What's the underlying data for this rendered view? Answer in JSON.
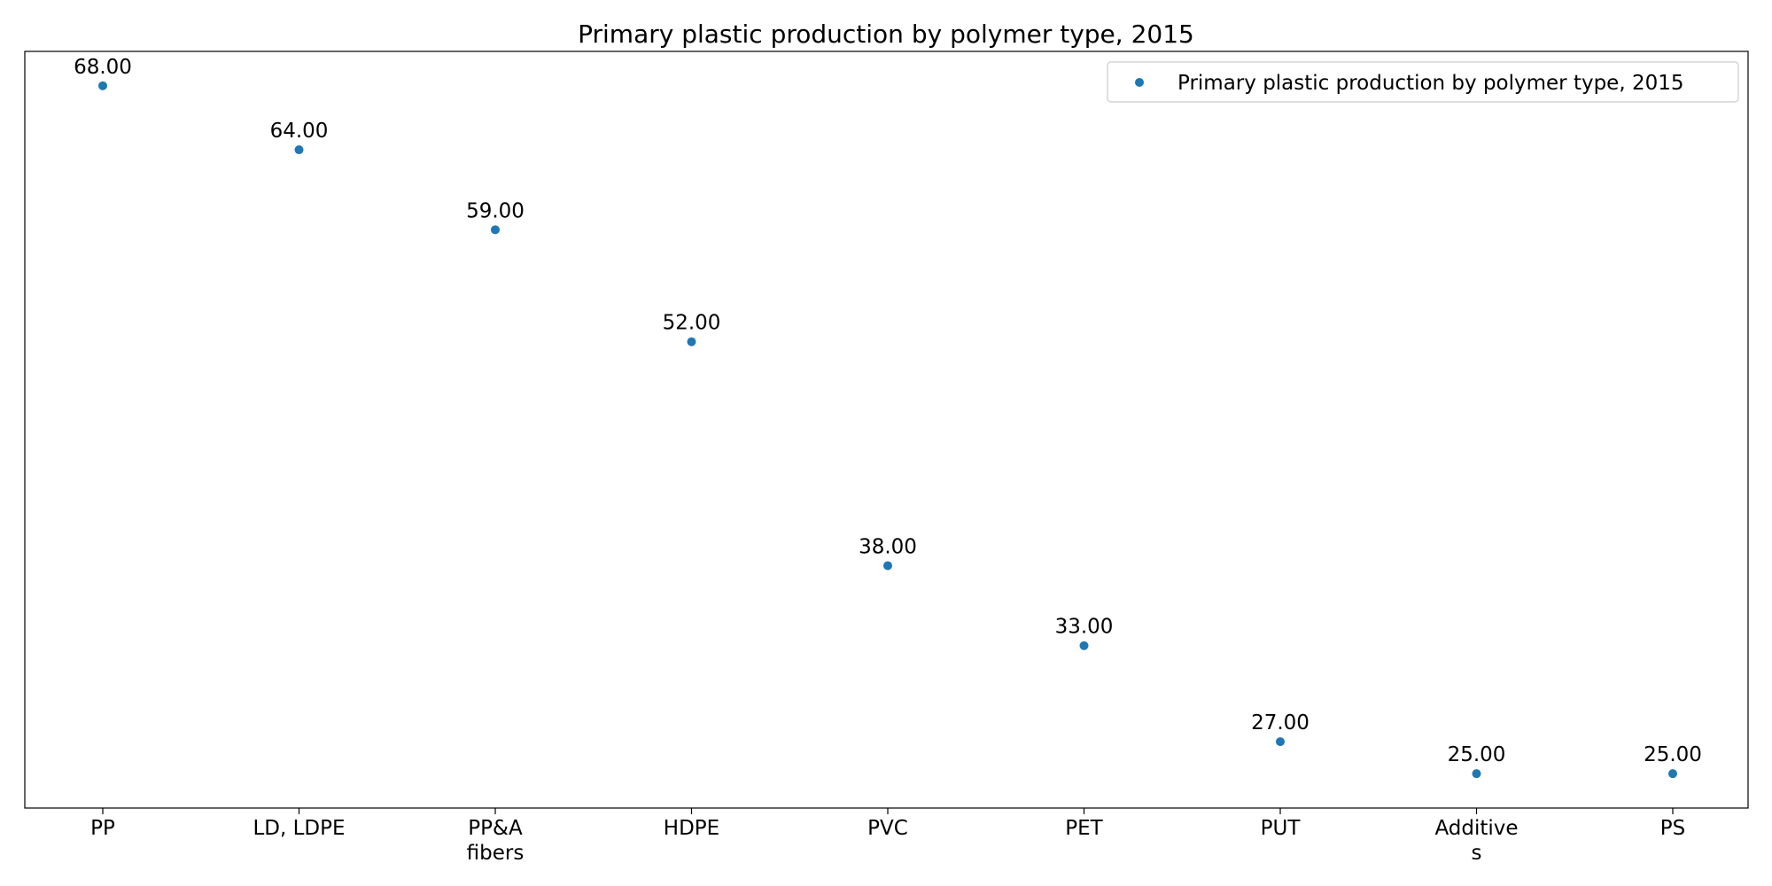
{
  "chart_data": {
    "type": "scatter",
    "title": "Primary plastic production by polymer type, 2015",
    "xlabel": "",
    "ylabel": "",
    "categories": [
      [
        "PP"
      ],
      [
        "LD, LDPE"
      ],
      [
        "PP&A",
        "fibers"
      ],
      [
        "HDPE"
      ],
      [
        "PVC"
      ],
      [
        "PET"
      ],
      [
        "PUT"
      ],
      [
        "Additive",
        "s"
      ],
      [
        "PS"
      ]
    ],
    "series": [
      {
        "name": "Primary plastic production by polymer type, 2015",
        "values": [
          68,
          64,
          59,
          52,
          38,
          33,
          27,
          25,
          25
        ],
        "data_labels": [
          "68.00",
          "64.00",
          "59.00",
          "52.00",
          "38.00",
          "33.00",
          "27.00",
          "25.00",
          "25.00"
        ],
        "color": "#1f77b4"
      }
    ],
    "ylim": [
      22.85,
      70.15
    ],
    "grid": false,
    "y_ticks_visible": false,
    "legend_position": "top-right"
  }
}
